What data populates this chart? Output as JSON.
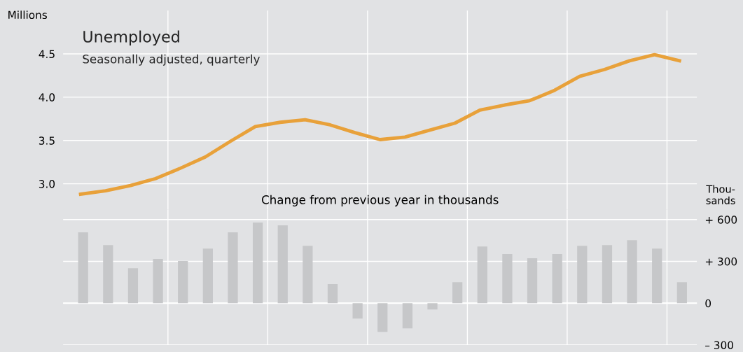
{
  "chart_data": [
    {
      "type": "line",
      "title": "Unemployed",
      "subtitle": "Seasonally adjusted, quarterly",
      "ylabel": "Millions",
      "categories": [
        null,
        null,
        null,
        null,
        null,
        null,
        null,
        null,
        null,
        null,
        null,
        null,
        null,
        null,
        null,
        null,
        null,
        null,
        null,
        null,
        null,
        null,
        null,
        null,
        null
      ],
      "series": [
        {
          "color": "#e8a13a",
          "values": [
            2.88,
            2.92,
            2.98,
            3.06,
            3.18,
            3.31,
            3.49,
            3.66,
            3.71,
            3.74,
            3.68,
            3.59,
            3.51,
            3.54,
            3.62,
            3.7,
            3.85,
            3.91,
            3.96,
            4.08,
            4.24,
            4.32,
            4.42,
            4.49,
            4.42
          ]
        }
      ],
      "ylim": [
        2.7,
        5.0
      ],
      "yticks": [
        {
          "value": 3.0,
          "label": "3.0"
        },
        {
          "value": 3.5,
          "label": "3.5"
        },
        {
          "value": 4.0,
          "label": "4.0"
        },
        {
          "value": 4.5,
          "label": "4.5"
        }
      ],
      "grid": true
    },
    {
      "type": "bar",
      "title": "Change from previous year in thousands",
      "ylabel": "Thou-\nsands",
      "categories": [
        null,
        null,
        null,
        null,
        null,
        null,
        null,
        null,
        null,
        null,
        null,
        null,
        null,
        null,
        null,
        null,
        null,
        null,
        null,
        null,
        null,
        null,
        null,
        null,
        null
      ],
      "series": [
        {
          "color": "#c6c7c9",
          "values": [
            508,
            417,
            251,
            317,
            302,
            392,
            508,
            578,
            558,
            412,
            136,
            -111,
            -206,
            -181,
            -45,
            151,
            407,
            352,
            322,
            352,
            412,
            417,
            452,
            392,
            151
          ]
        }
      ],
      "ylim": [
        -300,
        670
      ],
      "yticks": [
        {
          "value": 600,
          "label": "+ 600"
        },
        {
          "value": 300,
          "label": "+ 300"
        },
        0,
        {
          "value": -300,
          "label": "– 300"
        }
      ],
      "grid": true
    }
  ]
}
